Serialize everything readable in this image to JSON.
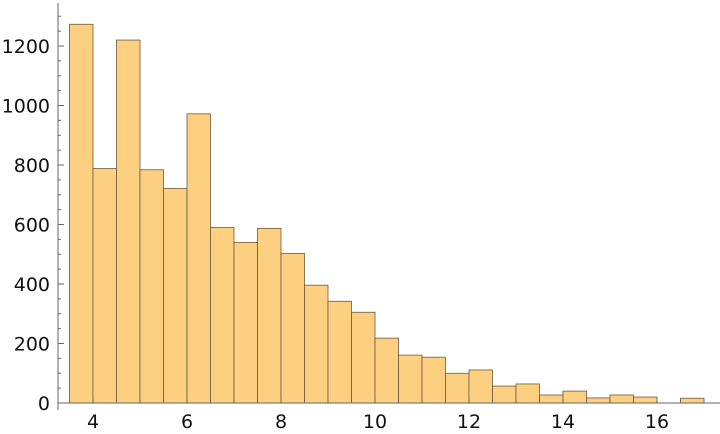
{
  "chart_data": {
    "type": "bar",
    "subtype": "histogram",
    "bin_edges": [
      3.5,
      4,
      4.5,
      5,
      5.5,
      6,
      6.5,
      7,
      7.5,
      8,
      8.5,
      9,
      9.5,
      10,
      10.5,
      11,
      11.5,
      12,
      12.5,
      13,
      13.5,
      14,
      14.5,
      15,
      15.5,
      16,
      16.5,
      17
    ],
    "values": [
      1273,
      788,
      1220,
      784,
      721,
      972,
      590,
      540,
      587,
      503,
      396,
      342,
      305,
      218,
      161,
      154,
      100,
      111,
      57,
      64,
      27,
      40,
      17,
      27,
      20,
      0,
      16
    ],
    "xlim": [
      3.3,
      17.3
    ],
    "ylim": [
      0,
      1335
    ],
    "x_ticks": [
      "4",
      "6",
      "8",
      "10",
      "12",
      "14",
      "16"
    ],
    "y_ticks": [
      "0",
      "200",
      "400",
      "600",
      "800",
      "1000",
      "1200"
    ],
    "title": "",
    "xlabel": "",
    "ylabel": "",
    "grid": false,
    "colors": {
      "bar_fill": "#FDCF80",
      "bar_edge": "#6E5A3C",
      "axis": "#666666"
    }
  }
}
